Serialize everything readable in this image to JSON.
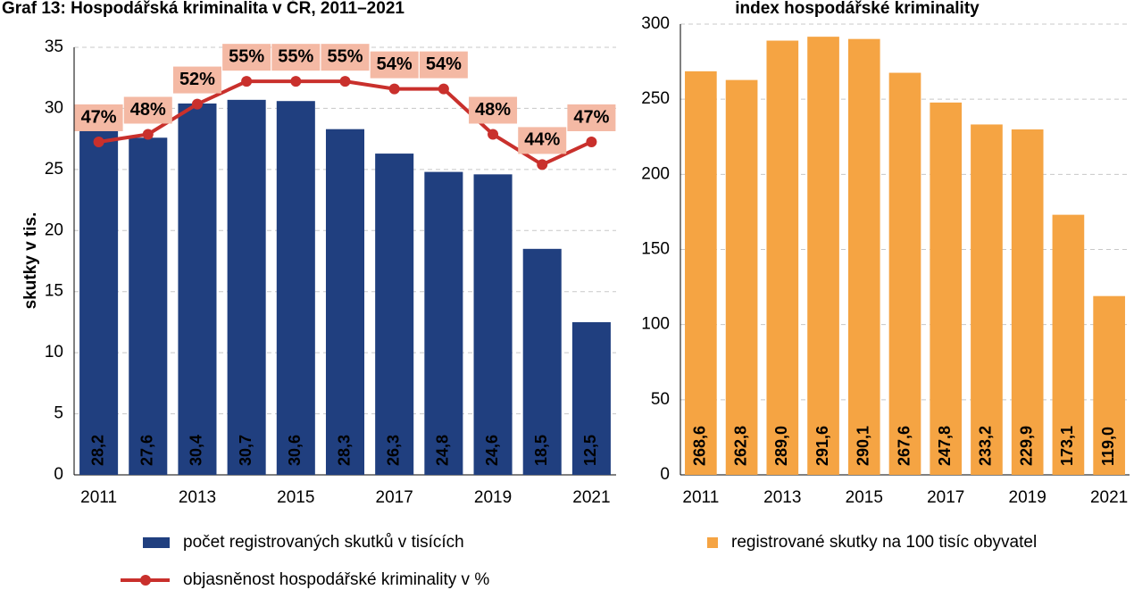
{
  "chart_data": [
    {
      "type": "bar",
      "title": "Graf 13: Hospodářská kriminalita v ČR, 2011–2021",
      "y_label": "skutky v tis.",
      "categories": [
        "2011",
        null,
        "2013",
        null,
        "2015",
        null,
        "2017",
        null,
        "2019",
        null,
        "2021"
      ],
      "series": [
        {
          "name": "počet registrovaných skutků v tisících",
          "type": "bar",
          "color": "#203f7f",
          "values": [
            28.2,
            27.6,
            30.4,
            30.7,
            30.6,
            28.3,
            26.3,
            24.8,
            24.6,
            18.5,
            12.5
          ],
          "value_labels": [
            "28,2",
            "27,6",
            "30,4",
            "30,7",
            "30,6",
            "28,3",
            "26,3",
            "24,8",
            "24,6",
            "18,5",
            "12,5"
          ]
        },
        {
          "name": "objasněnost hospodářské kriminality v %",
          "type": "line",
          "axis": "y2",
          "color": "#c9302c",
          "values": [
            47,
            48,
            52,
            55,
            55,
            55,
            54,
            54,
            48,
            44,
            47
          ],
          "value_labels": [
            "47%",
            "48%",
            "52%",
            "55%",
            "55%",
            "55%",
            "54%",
            "54%",
            "48%",
            "44%",
            "47%"
          ]
        }
      ],
      "ylim": [
        0,
        35
      ],
      "yticks": [
        0,
        5,
        10,
        15,
        20,
        25,
        30,
        35
      ],
      "y2lim": [
        3,
        59.5
      ],
      "grid": true,
      "legend": "bottom"
    },
    {
      "type": "bar",
      "title": "index hospodářské kriminality",
      "categories": [
        "2011",
        null,
        "2013",
        null,
        "2015",
        null,
        "2017",
        null,
        "2019",
        null,
        "2021"
      ],
      "series": [
        {
          "name": "registrované skutky na 100 tisíc obyvatel",
          "type": "bar",
          "color": "#f5a443",
          "values": [
            268.6,
            262.8,
            289.0,
            291.6,
            290.1,
            267.6,
            247.8,
            233.2,
            229.9,
            173.1,
            119.0
          ],
          "value_labels": [
            "268,6",
            "262,8",
            "289,0",
            "291,6",
            "290,1",
            "267,6",
            "247,8",
            "233,2",
            "229,9",
            "173,1",
            "119,0"
          ]
        }
      ],
      "ylim": [
        0,
        300
      ],
      "yticks": [
        0,
        50,
        100,
        150,
        200,
        250,
        300
      ],
      "grid": true,
      "legend": "bottom"
    }
  ]
}
